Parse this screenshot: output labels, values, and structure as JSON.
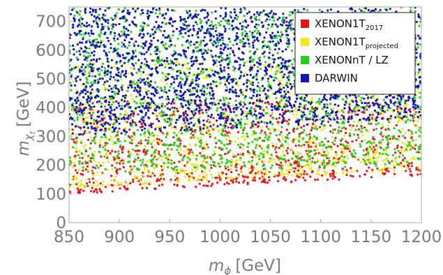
{
  "chart_data": {
    "type": "scatter",
    "title": "",
    "xlabel": {
      "main": "m",
      "sub": "ϕ",
      "unit": "[GeV]"
    },
    "ylabel": {
      "main": "m",
      "sub": "χ",
      "subsub": "t",
      "unit": "[GeV]"
    },
    "xlim": [
      850,
      1200
    ],
    "ylim": [
      0,
      750
    ],
    "x_ticks": [
      "850",
      "900",
      "950",
      "1000",
      "1050",
      "1100",
      "1150",
      "1200"
    ],
    "y_ticks": [
      "0",
      "100",
      "200",
      "300",
      "400",
      "500",
      "600",
      "700"
    ],
    "grid": false,
    "legend_position": "top-right",
    "series": [
      {
        "name": "XENON1T",
        "name_sub": "2017",
        "color": "#e8141c",
        "description_band": {
          "y_lower_at_xmin": 100,
          "y_lower_at_xmax": 165,
          "y_upper": 420
        }
      },
      {
        "name": "XENON1T",
        "name_sub": "projected",
        "color": "#f4e51c",
        "description_band": {
          "y_lower_at_xmin": 120,
          "y_lower_at_xmax": 185,
          "y_upper": 560
        }
      },
      {
        "name": "XENONnT / LZ",
        "name_sub": "",
        "color": "#2bcc1e",
        "description_band": {
          "y_lower_at_xmin": 170,
          "y_lower_at_xmax": 200,
          "y_upper": 750
        }
      },
      {
        "name": "DARWIN",
        "name_sub": "",
        "color": "#1414b4",
        "description_band": {
          "y_lower_at_xmin": 300,
          "y_lower_at_xmax": 360,
          "y_upper": 750
        }
      }
    ]
  }
}
